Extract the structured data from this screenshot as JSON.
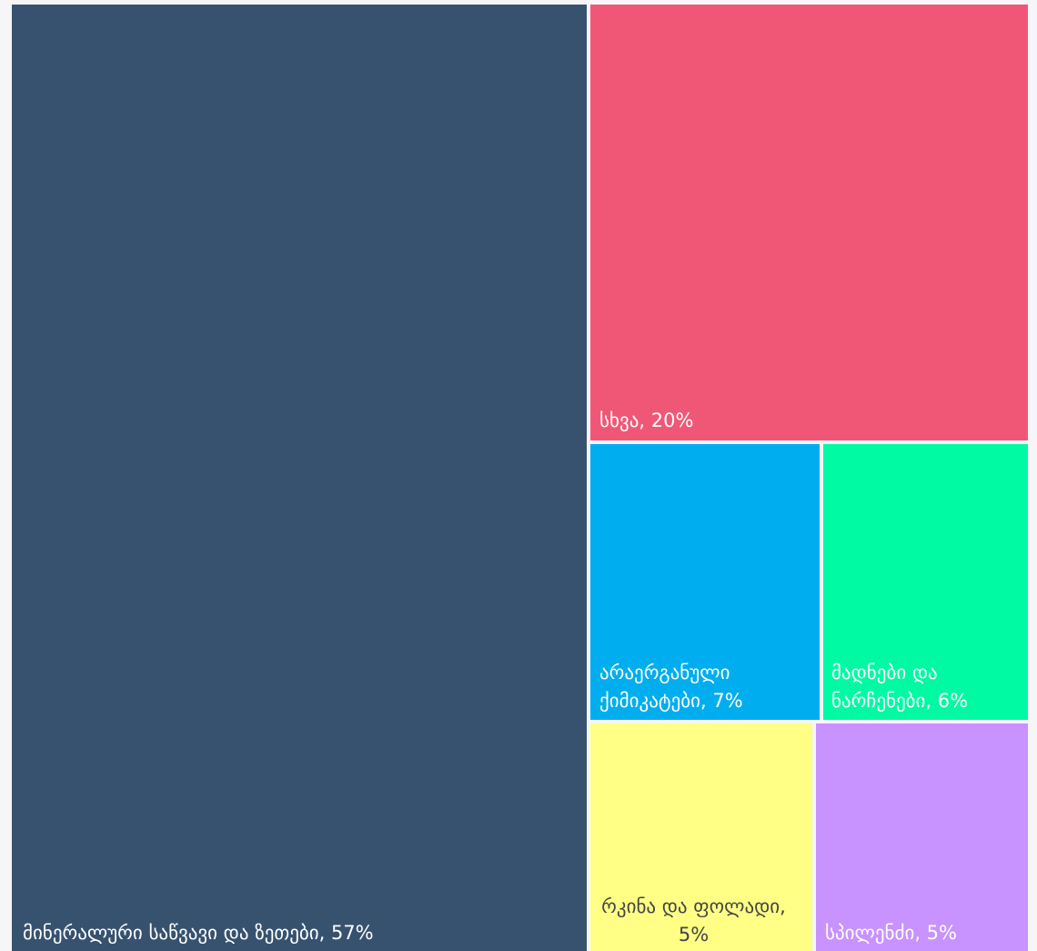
{
  "chart_data": {
    "type": "treemap",
    "title": "",
    "items": [
      {
        "label": "მინერალური საწვავი და ზეთები, 57%",
        "value": 57,
        "color": "#37526f",
        "text_color": "#ffffff"
      },
      {
        "label": "სხვა, 20%",
        "value": 20,
        "color": "#f05777",
        "text_color": "#ffffff"
      },
      {
        "label": "არაერგანული ქიმიკატები, 7%",
        "value": 7,
        "color": "#00aeef",
        "text_color": "#ffffff"
      },
      {
        "label": "მადნები და ნარჩენები, 6%",
        "value": 6,
        "color": "#00faa3",
        "text_color": "#ffffff"
      },
      {
        "label": "რკინა და ფოლადი, 5%",
        "value": 5,
        "color": "#ffff85",
        "text_color": "#444444"
      },
      {
        "label": "სპილენძი, 5%",
        "value": 5,
        "color": "#c892ff",
        "text_color": "#ffffff"
      }
    ]
  }
}
